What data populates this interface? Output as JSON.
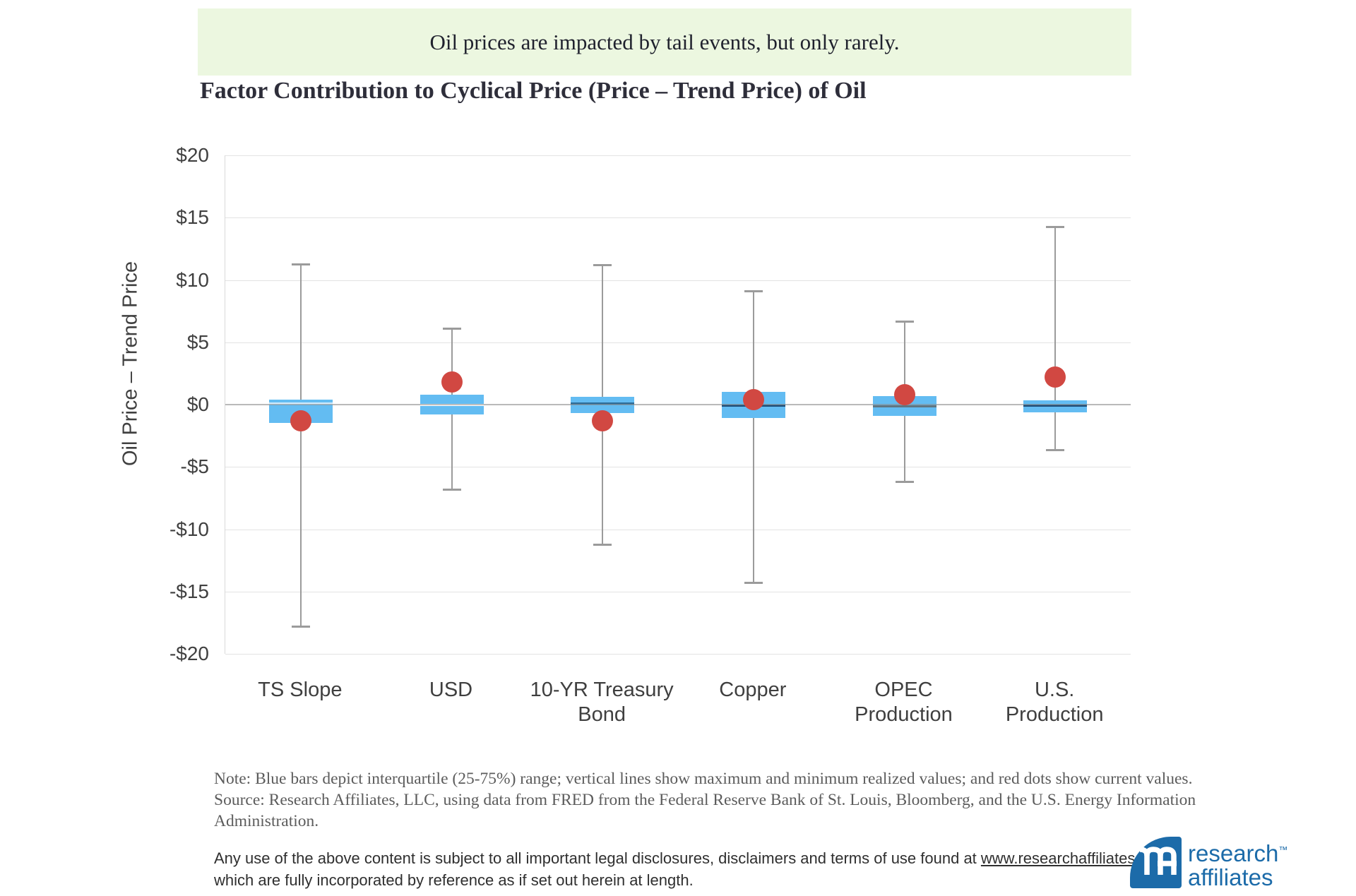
{
  "banner": {
    "text": "Oil prices are impacted by tail events, but only rarely."
  },
  "title": {
    "text": "Factor Contribution to Cyclical Price (Price – Trend Price) of Oil"
  },
  "chart_data": {
    "type": "box",
    "title": "Factor Contribution to Cyclical Price (Price – Trend Price) of Oil",
    "xlabel": "",
    "ylabel": "Oil Price – Trend Price",
    "ylim": [
      -20,
      20
    ],
    "grid": true,
    "yticks": [
      {
        "value": 20,
        "label": "$20"
      },
      {
        "value": 15,
        "label": "$15"
      },
      {
        "value": 10,
        "label": "$10"
      },
      {
        "value": 5,
        "label": "$5"
      },
      {
        "value": 0,
        "label": "$0"
      },
      {
        "value": -5,
        "label": "-$5"
      },
      {
        "value": -10,
        "label": "-$10"
      },
      {
        "value": -15,
        "label": "-$15"
      },
      {
        "value": -20,
        "label": "-$20"
      }
    ],
    "categories": [
      "TS Slope",
      "USD",
      "10-YR Treasury Bond",
      "Copper",
      "OPEC Production",
      "U.S. Production"
    ],
    "category_label_lines": [
      [
        "TS Slope"
      ],
      [
        "USD"
      ],
      [
        "10-YR Treasury",
        "Bond"
      ],
      [
        "Copper"
      ],
      [
        "OPEC",
        "Production"
      ],
      [
        "U.S.",
        "Production"
      ]
    ],
    "series": [
      {
        "label": "TS Slope",
        "min": -17.8,
        "q1": -1.5,
        "median": 0.1,
        "q3": 0.4,
        "max": 11.3,
        "current": -1.3,
        "median_color": "#cfeafc"
      },
      {
        "label": "USD",
        "min": -6.8,
        "q1": -0.8,
        "median": 0.0,
        "q3": 0.8,
        "max": 6.1,
        "current": 1.8,
        "median_color": "#ffffff"
      },
      {
        "label": "10-YR Treasury Bond",
        "min": -11.2,
        "q1": -0.7,
        "median": 0.1,
        "q3": 0.6,
        "max": 11.2,
        "current": -1.3,
        "median_color": "#2e6e99"
      },
      {
        "label": "Copper",
        "min": -14.3,
        "q1": -1.1,
        "median": -0.1,
        "q3": 1.0,
        "max": 9.1,
        "current": 0.4,
        "median_color": "#1f4e79"
      },
      {
        "label": "OPEC Production",
        "min": -6.2,
        "q1": -0.9,
        "median": -0.15,
        "q3": 0.7,
        "max": 6.7,
        "current": 0.8,
        "median_color": "#607682"
      },
      {
        "label": "U.S. Production",
        "min": -3.6,
        "q1": -0.6,
        "median": -0.1,
        "q3": 0.35,
        "max": 14.3,
        "current": 2.2,
        "median_color": "#1f4e79"
      }
    ],
    "colors": {
      "box_fill": "#63BCF2",
      "whisker": "#9b9b9b",
      "current_dot": "#d14842",
      "gridline": "#e3e3e3",
      "axis_text": "#404040",
      "banner_bg": "#ECF7E0",
      "logo_blue": "#1c6ba9"
    }
  },
  "note": {
    "text": "Note: Blue bars depict interquartile (25-75%) range; vertical lines show maximum and minimum realized values; and red dots show current values.  Source: Research Affiliates, LLC, using data from FRED from the Federal Reserve Bank of St. Louis, Bloomberg, and the U.S. Energy Information Administration."
  },
  "legal": {
    "text_before_link": "Any use of the above content is subject to all important legal disclosures, disclaimers and terms of use found at ",
    "link_text": "www.researchaffiliates.com",
    "text_after_link": ", which are fully incorporated by reference as if set out herein at length."
  },
  "logo": {
    "line1": "research",
    "line2": "affiliates",
    "tm": "™"
  }
}
